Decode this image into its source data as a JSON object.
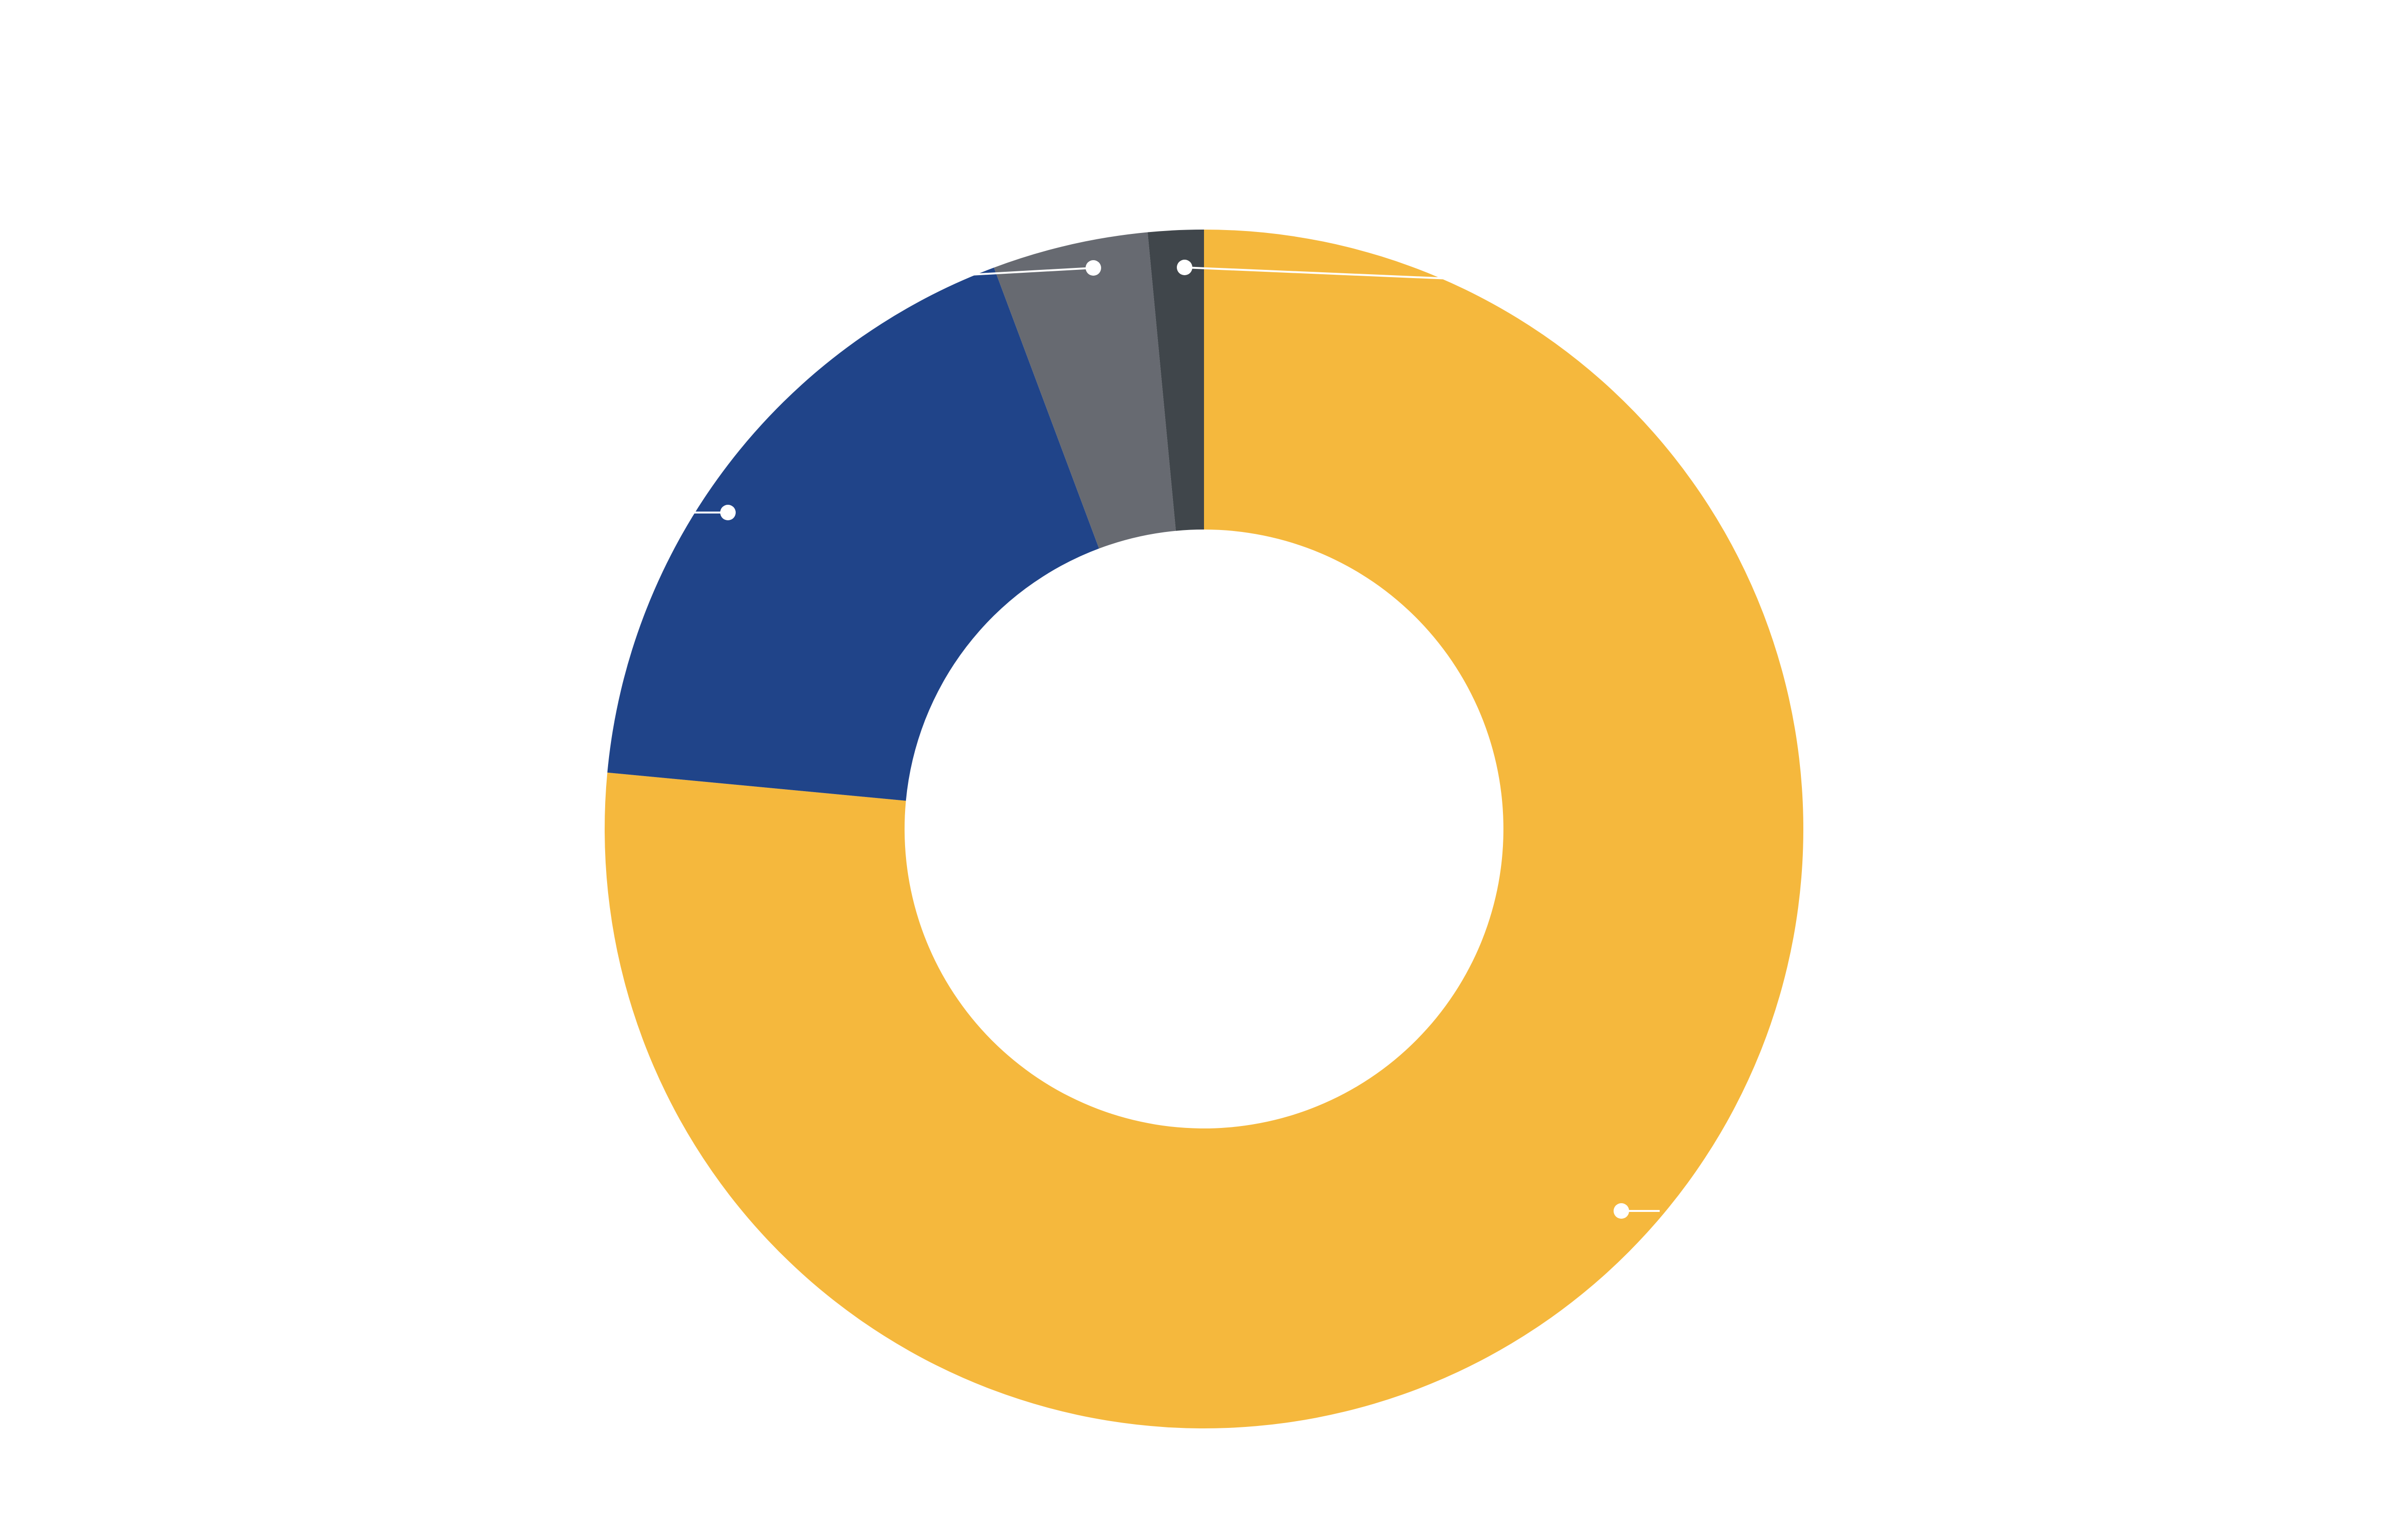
{
  "chart_data": {
    "type": "pie",
    "donut": true,
    "title": "",
    "legend": "none",
    "data_labels": "none",
    "slices": [
      {
        "value": 76.5,
        "color": "#F5B83D"
      },
      {
        "value": 17.8,
        "color": "#204489"
      },
      {
        "value": 4.2,
        "color": "#676A71"
      },
      {
        "value": 1.5,
        "color": "#40464B"
      }
    ]
  }
}
